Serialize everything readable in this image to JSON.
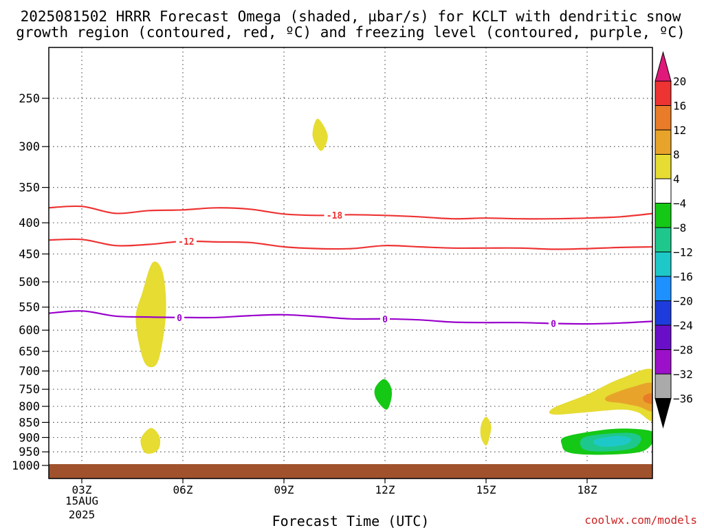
{
  "chart_data": {
    "type": "time-pressure cross-section",
    "title_line1": "2025081502 HRRR Forecast Omega (shaded, µbar/s) for KCLT with dendritic snow",
    "title_line2": "growth region (contoured, red, ºC) and freezing level (contoured, purple, ºC)",
    "xlabel": "Forecast Time (UTC)",
    "credit": "coolwx.com/models",
    "x_ticks": [
      {
        "hour": 3,
        "label": "03Z"
      },
      {
        "hour": 6,
        "label": "06Z"
      },
      {
        "hour": 9,
        "label": "09Z"
      },
      {
        "hour": 12,
        "label": "12Z"
      },
      {
        "hour": 15,
        "label": "15Z"
      },
      {
        "hour": 18,
        "label": "18Z"
      }
    ],
    "x_date_label": "15AUG",
    "x_year_label": "2025",
    "xlim_hours": [
      2,
      20
    ],
    "y_ticks": [
      250,
      300,
      350,
      400,
      450,
      500,
      550,
      600,
      650,
      700,
      750,
      800,
      850,
      900,
      950,
      1000
    ],
    "ylim_hpa": [
      1025,
      205
    ],
    "contours": [
      {
        "name": "-18",
        "label": "-18",
        "color": "#ee3333",
        "label_at_hour": 10.5,
        "points": [
          [
            2,
            378
          ],
          [
            3,
            376
          ],
          [
            4,
            386
          ],
          [
            5,
            382
          ],
          [
            6,
            381
          ],
          [
            7,
            378
          ],
          [
            8,
            380
          ],
          [
            9,
            387
          ],
          [
            10,
            389
          ],
          [
            11,
            388
          ],
          [
            12,
            389
          ],
          [
            13,
            391
          ],
          [
            14,
            394
          ],
          [
            15,
            393
          ],
          [
            16,
            394
          ],
          [
            17,
            394
          ],
          [
            18,
            393
          ],
          [
            19,
            391
          ],
          [
            20,
            386
          ]
        ]
      },
      {
        "name": "-12",
        "label": "-12",
        "color": "#ee3333",
        "label_at_hour": 6.1,
        "points": [
          [
            2,
            427
          ],
          [
            3,
            426
          ],
          [
            4,
            436
          ],
          [
            5,
            434
          ],
          [
            6,
            429
          ],
          [
            7,
            430
          ],
          [
            8,
            431
          ],
          [
            9,
            438
          ],
          [
            10,
            441
          ],
          [
            11,
            441
          ],
          [
            12,
            436
          ],
          [
            13,
            438
          ],
          [
            14,
            440
          ],
          [
            15,
            440
          ],
          [
            16,
            440
          ],
          [
            17,
            442
          ],
          [
            18,
            441
          ],
          [
            19,
            439
          ],
          [
            20,
            438
          ]
        ]
      },
      {
        "name": "0",
        "label": "0",
        "color": "#9900cc",
        "label_at_hours": [
          5.9,
          12,
          17
        ],
        "points": [
          [
            2,
            563
          ],
          [
            3,
            558
          ],
          [
            4,
            569
          ],
          [
            5,
            571
          ],
          [
            6,
            572
          ],
          [
            7,
            572
          ],
          [
            8,
            568
          ],
          [
            9,
            566
          ],
          [
            10,
            570
          ],
          [
            11,
            575
          ],
          [
            12,
            575
          ],
          [
            13,
            577
          ],
          [
            14,
            582
          ],
          [
            15,
            583
          ],
          [
            16,
            583
          ],
          [
            17,
            585
          ],
          [
            18,
            586
          ],
          [
            19,
            584
          ],
          [
            20,
            580
          ]
        ]
      }
    ],
    "shaded_regions": [
      {
        "name": "upward-4to8-300hPa",
        "range": "4 to 8",
        "color": "#e6dc32",
        "points": [
          [
            10.0,
            270
          ],
          [
            10.3,
            288
          ],
          [
            10.1,
            305
          ],
          [
            9.85,
            288
          ]
        ]
      },
      {
        "name": "upward-4to8-550hPa",
        "range": "4 to 8",
        "color": "#e6dc32",
        "points": [
          [
            5.1,
            465
          ],
          [
            5.4,
            482
          ],
          [
            5.5,
            560
          ],
          [
            5.3,
            665
          ],
          [
            5.05,
            690
          ],
          [
            4.8,
            665
          ],
          [
            4.6,
            575
          ],
          [
            4.8,
            520
          ]
        ]
      },
      {
        "name": "upward-4to8-900hPa",
        "range": "4 to 8",
        "color": "#e6dc32",
        "points": [
          [
            5.05,
            868
          ],
          [
            5.3,
            895
          ],
          [
            5.3,
            935
          ],
          [
            5.1,
            955
          ],
          [
            4.85,
            950
          ],
          [
            4.75,
            905
          ]
        ]
      },
      {
        "name": "upward-4to8-870hPa-15Z",
        "range": "4 to 8",
        "color": "#e6dc32",
        "points": [
          [
            15,
            832
          ],
          [
            15.15,
            860
          ],
          [
            15.1,
            900
          ],
          [
            15,
            928
          ],
          [
            14.85,
            900
          ],
          [
            14.85,
            860
          ]
        ]
      },
      {
        "name": "downward-minus4to-8-760hPa",
        "range": "-4 to -8",
        "color": "#15c815",
        "points": [
          [
            11.95,
            722
          ],
          [
            12.15,
            738
          ],
          [
            12.2,
            770
          ],
          [
            12.05,
            810
          ],
          [
            11.75,
            780
          ],
          [
            11.7,
            748
          ]
        ]
      },
      {
        "name": "upward-4to8-18Z-20Z",
        "range": "4 to 8",
        "color": "#e6dc32",
        "points": [
          [
            17,
            805
          ],
          [
            18,
            765
          ],
          [
            19,
            720
          ],
          [
            20,
            700
          ],
          [
            20,
            840
          ],
          [
            19.5,
            818
          ],
          [
            19,
            810
          ],
          [
            18,
            818
          ],
          [
            17,
            825
          ]
        ]
      },
      {
        "name": "upward-8to12-18Z-20Z",
        "range": "8 to 12",
        "color": "#e8a42a",
        "points": [
          [
            18.6,
            770
          ],
          [
            19.3,
            745
          ],
          [
            20,
            735
          ],
          [
            20,
            812
          ],
          [
            19.5,
            800
          ],
          [
            19,
            790
          ],
          [
            18.6,
            785
          ]
        ]
      },
      {
        "name": "upward-12to16-19.8Z",
        "range": "12 to 16",
        "color": "#e87c28",
        "points": [
          [
            19.7,
            768
          ],
          [
            20,
            762
          ],
          [
            20,
            792
          ],
          [
            19.7,
            786
          ]
        ]
      },
      {
        "name": "downward-minus4to-8-18Z",
        "range": "-4 to -8",
        "color": "#15c815",
        "points": [
          [
            17.3,
            900
          ],
          [
            18,
            882
          ],
          [
            19,
            870
          ],
          [
            19.9,
            878
          ],
          [
            20.0,
            905
          ],
          [
            19.7,
            945
          ],
          [
            19,
            958
          ],
          [
            18,
            960
          ],
          [
            17.4,
            950
          ],
          [
            17.25,
            925
          ]
        ]
      },
      {
        "name": "downward-minus8to-12-18Z",
        "range": "-8 to -12",
        "color": "#1ec88c",
        "points": [
          [
            17.9,
            900
          ],
          [
            18.5,
            888
          ],
          [
            19.3,
            885
          ],
          [
            19.6,
            902
          ],
          [
            19.4,
            935
          ],
          [
            18.7,
            948
          ],
          [
            18.0,
            945
          ],
          [
            17.8,
            925
          ]
        ]
      },
      {
        "name": "downward-minus12to-16-18Z",
        "range": "-12 to -16",
        "color": "#1ec8c8",
        "points": [
          [
            18.3,
            905
          ],
          [
            18.9,
            895
          ],
          [
            19.3,
            905
          ],
          [
            19.1,
            925
          ],
          [
            18.5,
            932
          ],
          [
            18.2,
            920
          ]
        ]
      }
    ],
    "ground": {
      "name": "below-ground",
      "color": "#a0522d",
      "from_hpa": 1025,
      "to_hpa": 995
    },
    "colorbar": {
      "labels": [
        "20",
        "16",
        "12",
        "8",
        "4",
        "−4",
        "−8",
        "−12",
        "−16",
        "−20",
        "−24",
        "−28",
        "−32",
        "−36"
      ],
      "bins": [
        {
          "from": 16,
          "to": 20,
          "color": "#ee3333"
        },
        {
          "from": 12,
          "to": 16,
          "color": "#e87c28"
        },
        {
          "from": 8,
          "to": 12,
          "color": "#e8a42a"
        },
        {
          "from": 4,
          "to": 8,
          "color": "#e6dc32"
        },
        {
          "from": -4,
          "to": 4,
          "color": "#ffffff"
        },
        {
          "from": -8,
          "to": -4,
          "color": "#15c815"
        },
        {
          "from": -12,
          "to": -8,
          "color": "#1ec88c"
        },
        {
          "from": -16,
          "to": -12,
          "color": "#1ec8c8"
        },
        {
          "from": -20,
          "to": -16,
          "color": "#1e90ff"
        },
        {
          "from": -24,
          "to": -20,
          "color": "#1e3cdc"
        },
        {
          "from": -28,
          "to": -24,
          "color": "#6a0fc8"
        },
        {
          "from": -32,
          "to": -28,
          "color": "#9b10c8"
        },
        {
          "from": -36,
          "to": -32,
          "color": "#aaaaaa"
        }
      ],
      "top_arrow_color": "#e0187a",
      "bottom_arrow_color": "#000000"
    }
  }
}
